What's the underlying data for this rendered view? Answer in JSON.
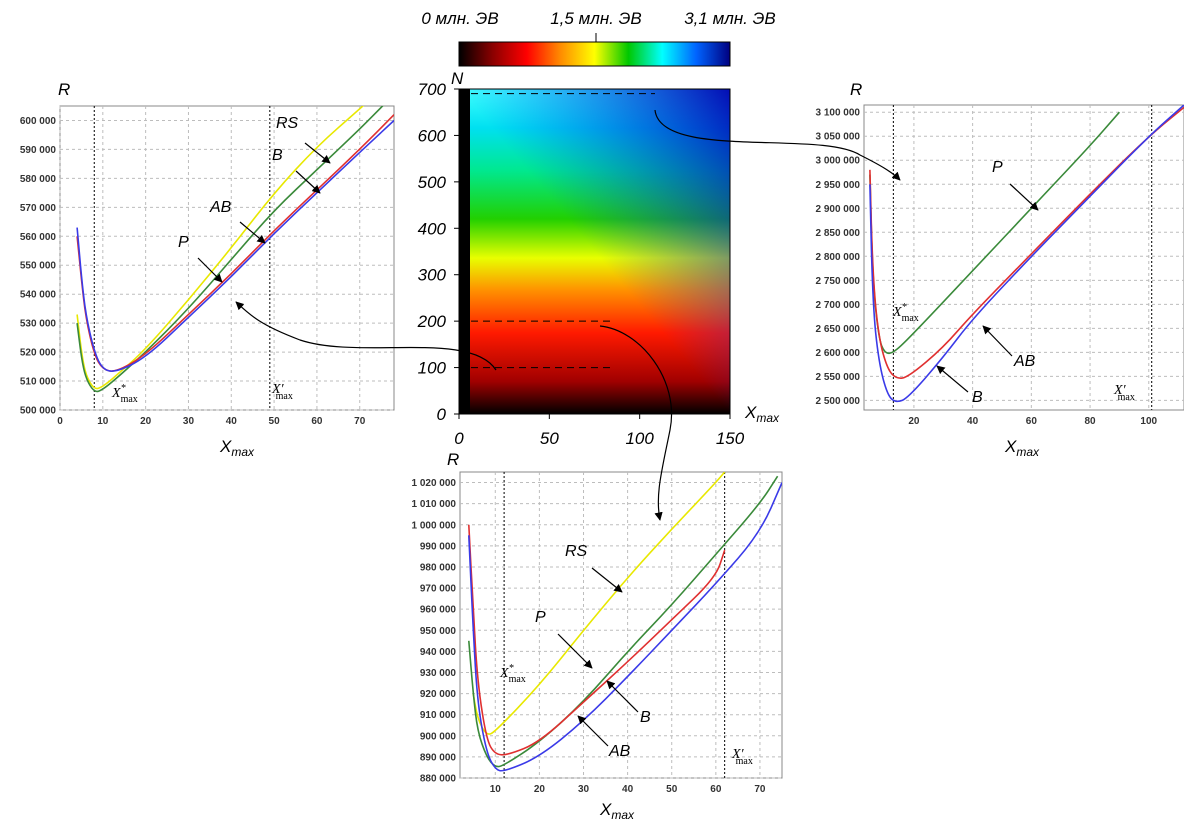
{
  "colorbar": {
    "labels": [
      "0 млн. ЭВ",
      "1,5 млн. ЭВ",
      "3,1 млн. ЭВ"
    ],
    "stops": [
      "#000000",
      "#8b0000",
      "#ff0000",
      "#ff8c00",
      "#ffff00",
      "#00c800",
      "#00ffff",
      "#0064ff",
      "#000080"
    ]
  },
  "heatmap": {
    "x_axis_label": "X",
    "x_axis_sub": "max",
    "y_axis_label": "N",
    "x_ticks": [
      "0",
      "50",
      "100",
      "150"
    ],
    "y_ticks": [
      "0",
      "100",
      "200",
      "300",
      "400",
      "500",
      "600",
      "700"
    ]
  },
  "annotations": {
    "x_star": "X",
    "x_star_sup": "*",
    "x_prime": "X′",
    "max_sub": "max"
  },
  "chart_data": [
    {
      "type": "heatmap",
      "xlim": [
        0,
        150
      ],
      "ylim": [
        0,
        700
      ],
      "xlabel": "Xmax",
      "ylabel": "N",
      "colorbar_range": [
        0,
        3.1
      ],
      "colorbar_labels": [
        "0 млн. ЭВ",
        "1,5 млн. ЭВ",
        "3,1 млн. ЭВ"
      ],
      "highlighted_rows": [
        100,
        200,
        690
      ]
    },
    {
      "type": "line",
      "ylabel": "R",
      "xlabel": "Xmax",
      "xlim": [
        0,
        78
      ],
      "ylim": [
        500000,
        605000
      ],
      "x_ticks": [
        "0",
        "10",
        "20",
        "30",
        "40",
        "50",
        "60",
        "70"
      ],
      "y_ticks": [
        "500 000",
        "510 000",
        "520 000",
        "530 000",
        "540 000",
        "550 000",
        "560 000",
        "570 000",
        "580 000",
        "590 000",
        "600 000"
      ],
      "vlines": [
        8,
        49
      ],
      "series": [
        {
          "name": "RS",
          "color": "#e8e800",
          "points": [
            [
              4,
              533
            ],
            [
              5,
              520
            ],
            [
              6,
              512
            ],
            [
              8,
              507
            ],
            [
              10,
              508
            ],
            [
              14,
              513
            ],
            [
              20,
              521
            ],
            [
              30,
              538
            ],
            [
              40,
              556
            ],
            [
              50,
              575
            ],
            [
              60,
              591
            ],
            [
              70,
              604
            ],
            [
              76,
              612
            ]
          ]
        },
        {
          "name": "B",
          "color": "#3a8a3a",
          "points": [
            [
              4,
              530
            ],
            [
              5,
              518
            ],
            [
              6,
              511
            ],
            [
              8,
              506
            ],
            [
              10,
              507
            ],
            [
              14,
              512
            ],
            [
              20,
              520
            ],
            [
              30,
              535
            ],
            [
              40,
              552
            ],
            [
              50,
              569
            ],
            [
              60,
              583
            ],
            [
              70,
              597
            ],
            [
              76,
              606
            ]
          ]
        },
        {
          "name": "AB",
          "color": "#e03030",
          "points": [
            [
              4,
              560
            ],
            [
              5,
              545
            ],
            [
              6,
              532
            ],
            [
              8,
              519
            ],
            [
              10,
              514
            ],
            [
              13,
              513
            ],
            [
              20,
              519
            ],
            [
              30,
              533
            ],
            [
              40,
              547
            ],
            [
              50,
              562
            ],
            [
              60,
              576
            ],
            [
              70,
              590
            ],
            [
              78,
              602
            ]
          ]
        },
        {
          "name": "P",
          "color": "#3a3ae8",
          "points": [
            [
              4,
              563
            ],
            [
              5,
              546
            ],
            [
              6,
              533
            ],
            [
              8,
              520
            ],
            [
              10,
              514
            ],
            [
              13,
              513
            ],
            [
              20,
              518
            ],
            [
              30,
              532
            ],
            [
              40,
              546
            ],
            [
              50,
              561
            ],
            [
              60,
              575
            ],
            [
              70,
              589
            ],
            [
              78,
              600
            ]
          ]
        }
      ],
      "curve_labels": [
        "RS",
        "B",
        "AB",
        "P"
      ]
    },
    {
      "type": "line",
      "ylabel": "R",
      "xlabel": "Xmax",
      "xlim": [
        3,
        112
      ],
      "ylim": [
        2480000,
        3115000
      ],
      "x_ticks": [
        "20",
        "40",
        "60",
        "80",
        "100"
      ],
      "y_ticks": [
        "2 500 000",
        "2 550 000",
        "2 600 000",
        "2 650 000",
        "2 700 000",
        "2 750 000",
        "2 800 000",
        "2 850 000",
        "2 900 000",
        "2 950 000",
        "3 000 000",
        "3 050 000",
        "3 100 000"
      ],
      "vlines": [
        13,
        101
      ],
      "series": [
        {
          "name": "P",
          "color": "#3a8a3a",
          "points": [
            [
              5,
              2970
            ],
            [
              6,
              2750
            ],
            [
              8,
              2630
            ],
            [
              10,
              2598
            ],
            [
              13,
              2598
            ],
            [
              20,
              2640
            ],
            [
              40,
              2770
            ],
            [
              60,
              2900
            ],
            [
              80,
              3030
            ],
            [
              90,
              3100
            ]
          ]
        },
        {
          "name": "AB",
          "color": "#e03030",
          "points": [
            [
              5,
              2980
            ],
            [
              6,
              2760
            ],
            [
              8,
              2630
            ],
            [
              11,
              2565
            ],
            [
              14,
              2545
            ],
            [
              18,
              2548
            ],
            [
              30,
              2610
            ],
            [
              40,
              2680
            ],
            [
              60,
              2805
            ],
            [
              80,
              2930
            ],
            [
              100,
              3050
            ],
            [
              112,
              3110
            ]
          ]
        },
        {
          "name": "B",
          "color": "#3a3ae8",
          "points": [
            [
              5,
              2950
            ],
            [
              6,
              2700
            ],
            [
              8,
              2580
            ],
            [
              11,
              2510
            ],
            [
              14,
              2495
            ],
            [
              18,
              2505
            ],
            [
              30,
              2590
            ],
            [
              40,
              2670
            ],
            [
              60,
              2800
            ],
            [
              80,
              2925
            ],
            [
              100,
              3050
            ],
            [
              112,
              3115
            ]
          ]
        }
      ],
      "curve_labels": [
        "P",
        "AB",
        "B"
      ]
    },
    {
      "type": "line",
      "ylabel": "R",
      "xlabel": "Xmax",
      "xlim": [
        2,
        75
      ],
      "ylim": [
        880000,
        1025000
      ],
      "x_ticks": [
        "10",
        "20",
        "30",
        "40",
        "50",
        "60",
        "70"
      ],
      "y_ticks": [
        "880 000",
        "890 000",
        "900 000",
        "910 000",
        "920 000",
        "930 000",
        "940 000",
        "950 000",
        "960 000",
        "970 000",
        "980 000",
        "990 000",
        "1 000 000",
        "1 010 000",
        "1 020 000"
      ],
      "vlines": [
        12,
        62
      ],
      "series": [
        {
          "name": "RS",
          "color": "#e8e800",
          "points": [
            [
              5,
              920
            ],
            [
              6,
              908
            ],
            [
              8,
              900
            ],
            [
              10,
              902
            ],
            [
              20,
              924
            ],
            [
              30,
              950
            ],
            [
              40,
              975
            ],
            [
              50,
              998
            ],
            [
              60,
              1020
            ],
            [
              62,
              1025
            ]
          ]
        },
        {
          "name": "P",
          "color": "#3a8a3a",
          "points": [
            [
              4,
              945
            ],
            [
              5,
              920
            ],
            [
              6,
              902
            ],
            [
              8,
              890
            ],
            [
              10,
              885
            ],
            [
              12,
              886
            ],
            [
              20,
              897
            ],
            [
              30,
              916
            ],
            [
              40,
              940
            ],
            [
              50,
              962
            ],
            [
              60,
              986
            ],
            [
              70,
              1010
            ],
            [
              74,
              1023
            ]
          ]
        },
        {
          "name": "B",
          "color": "#e03030",
          "points": [
            [
              4,
              1000
            ],
            [
              5,
              960
            ],
            [
              6,
              925
            ],
            [
              8,
              898
            ],
            [
              10,
              891
            ],
            [
              13,
              891
            ],
            [
              20,
              897
            ],
            [
              30,
              916
            ],
            [
              40,
              935
            ],
            [
              50,
              955
            ],
            [
              60,
              975
            ],
            [
              62,
              988
            ]
          ]
        },
        {
          "name": "AB",
          "color": "#3a3ae8",
          "points": [
            [
              4,
              995
            ],
            [
              5,
              950
            ],
            [
              6,
              915
            ],
            [
              8,
              892
            ],
            [
              10,
              884
            ],
            [
              12,
              883
            ],
            [
              20,
              890
            ],
            [
              30,
              907
            ],
            [
              40,
              928
            ],
            [
              50,
              950
            ],
            [
              60,
              972
            ],
            [
              70,
              996
            ],
            [
              75,
              1020
            ]
          ]
        }
      ],
      "curve_labels": [
        "RS",
        "P",
        "B",
        "AB"
      ]
    }
  ]
}
